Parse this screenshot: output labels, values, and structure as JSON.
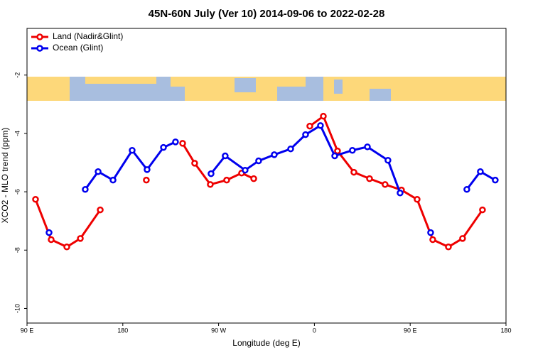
{
  "chart_data": {
    "type": "line",
    "title": "45N-60N July (Ver 10)   2014-09-06 to 2022-02-28",
    "x_label": "Longitude (deg E)",
    "y_label": "XCO2 - MLO trend (ppm)",
    "xlim": [
      90,
      540
    ],
    "ylim": [
      -10.5,
      -0.4
    ],
    "xticks": [
      {
        "value": 90,
        "label": "90 E"
      },
      {
        "value": 180,
        "label": "180"
      },
      {
        "value": 270,
        "label": "90 W"
      },
      {
        "value": 360,
        "label": "0"
      },
      {
        "value": 450,
        "label": "90 E"
      },
      {
        "value": 540,
        "label": "180"
      }
    ],
    "yticks": [
      -2,
      -4,
      -6,
      -8,
      -10
    ],
    "legend": "top-left",
    "series": [
      {
        "name": "Land (Nadir&Glint)",
        "color": "#ee0000",
        "x": [
          98.0,
          112.7,
          127.4,
          140.1,
          158.8,
          null,
          202.1,
          null,
          236.2,
          247.5,
          262.2,
          277.6,
          291.6,
          303.0,
          null,
          355.7,
          368.4,
          381.7,
          397.1,
          411.8,
          426.4,
          441.8,
          456.5,
          471.2,
          485.9,
          499.2,
          517.9
        ],
        "values": [
          -6.26,
          -7.64,
          -7.89,
          -7.6,
          -6.62,
          null,
          -5.6,
          null,
          -4.34,
          -5.02,
          -5.75,
          -5.6,
          -5.36,
          -5.55,
          null,
          -3.75,
          -3.41,
          -4.6,
          -5.33,
          -5.55,
          -5.75,
          -5.94,
          -6.26,
          -7.64,
          -7.89,
          -7.6,
          -6.62
        ]
      },
      {
        "name": "Ocean (Glint)",
        "color": "#0000ee",
        "x": [
          110.7,
          null,
          144.7,
          156.8,
          170.8,
          188.8,
          202.8,
          218.2,
          229.5,
          null,
          262.9,
          276.2,
          294.9,
          307.6,
          322.3,
          337.7,
          351.7,
          365.7,
          379.1,
          395.7,
          409.8,
          429.1,
          440.5,
          null,
          469.2,
          null,
          503.2,
          515.9,
          529.9
        ],
        "values": [
          -7.4,
          null,
          -5.92,
          -5.31,
          -5.6,
          -4.58,
          -5.24,
          -4.48,
          -4.29,
          null,
          -5.38,
          -4.77,
          -5.26,
          -4.94,
          -4.73,
          -4.53,
          -4.04,
          -3.73,
          -4.77,
          -4.58,
          -4.46,
          -4.92,
          -6.04,
          null,
          -7.4,
          null,
          -5.92,
          -5.31,
          -5.6
        ]
      }
    ]
  }
}
